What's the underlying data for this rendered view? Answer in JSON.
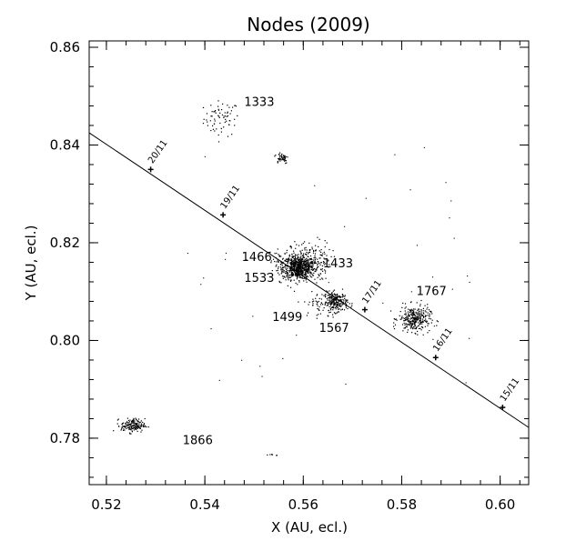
{
  "chart_data": {
    "type": "scatter",
    "title": "Nodes (2009)",
    "xlabel": "X (AU, ecl.)",
    "ylabel": "Y (AU, ecl.)",
    "xlim": [
      0.5165,
      0.6058
    ],
    "ylim": [
      0.7705,
      0.8613
    ],
    "x_ticks": [
      0.52,
      0.54,
      0.56,
      0.58,
      0.6
    ],
    "x_tick_labels": [
      "0.52",
      "0.54",
      "0.56",
      "0.58",
      "0.60"
    ],
    "y_ticks": [
      0.78,
      0.8,
      0.82,
      0.84,
      0.86
    ],
    "y_tick_labels": [
      "0.78",
      "0.80",
      "0.82",
      "0.84",
      "0.86"
    ],
    "grid": false,
    "orbit_line": {
      "start": [
        0.5165,
        0.8425
      ],
      "end": [
        0.6058,
        0.7822
      ]
    },
    "date_markers": [
      {
        "label": "20/11",
        "x": 0.529,
        "y": 0.835
      },
      {
        "label": "19/11",
        "x": 0.5437,
        "y": 0.8257
      },
      {
        "label": "17/11",
        "x": 0.5725,
        "y": 0.8063
      },
      {
        "label": "16/11",
        "x": 0.5869,
        "y": 0.7965
      },
      {
        "label": "15/11",
        "x": 0.6005,
        "y": 0.7863
      }
    ],
    "clusters": [
      {
        "label": "1333",
        "x": 0.5433,
        "y": 0.8455,
        "spread_x": 0.0018,
        "spread_y": 0.0018,
        "count": 70
      },
      {
        "label": "1466",
        "x": 0.559,
        "y": 0.815,
        "spread_x": 0.0016,
        "spread_y": 0.0012,
        "count": 650
      },
      {
        "label": "1433",
        "x": 0.5615,
        "y": 0.8165,
        "spread_x": 0.002,
        "spread_y": 0.002,
        "count": 160
      },
      {
        "label": "1533",
        "x": 0.556,
        "y": 0.816,
        "spread_x": 0.0015,
        "spread_y": 0.0018,
        "count": 70
      },
      {
        "label": "1499",
        "x": 0.5625,
        "y": 0.8075,
        "spread_x": 0.0012,
        "spread_y": 0.0012,
        "count": 40
      },
      {
        "label": "1567",
        "x": 0.5665,
        "y": 0.808,
        "spread_x": 0.0012,
        "spread_y": 0.001,
        "count": 240
      },
      {
        "label": "1767",
        "x": 0.5825,
        "y": 0.8045,
        "spread_x": 0.0016,
        "spread_y": 0.0013,
        "count": 300
      },
      {
        "label": "1866",
        "x": 0.5253,
        "y": 0.7827,
        "spread_x": 0.0012,
        "spread_y": 0.0007,
        "count": 170
      },
      {
        "label": "",
        "x": 0.5555,
        "y": 0.8375,
        "spread_x": 0.0007,
        "spread_y": 0.0006,
        "count": 50
      },
      {
        "label": "",
        "x": 0.5535,
        "y": 0.7767,
        "spread_x": 0.0008,
        "spread_y": 0.0001,
        "count": 6
      }
    ],
    "cluster_label_positions": [
      {
        "label": "1333",
        "x": 0.548,
        "y": 0.848
      },
      {
        "label": "1466",
        "x": 0.5475,
        "y": 0.8163
      },
      {
        "label": "1433",
        "x": 0.564,
        "y": 0.815
      },
      {
        "label": "1533",
        "x": 0.548,
        "y": 0.812
      },
      {
        "label": "1499",
        "x": 0.5537,
        "y": 0.804
      },
      {
        "label": "1567",
        "x": 0.5632,
        "y": 0.8018
      },
      {
        "label": "1767",
        "x": 0.583,
        "y": 0.8093
      },
      {
        "label": "1866",
        "x": 0.5355,
        "y": 0.7788
      }
    ]
  }
}
